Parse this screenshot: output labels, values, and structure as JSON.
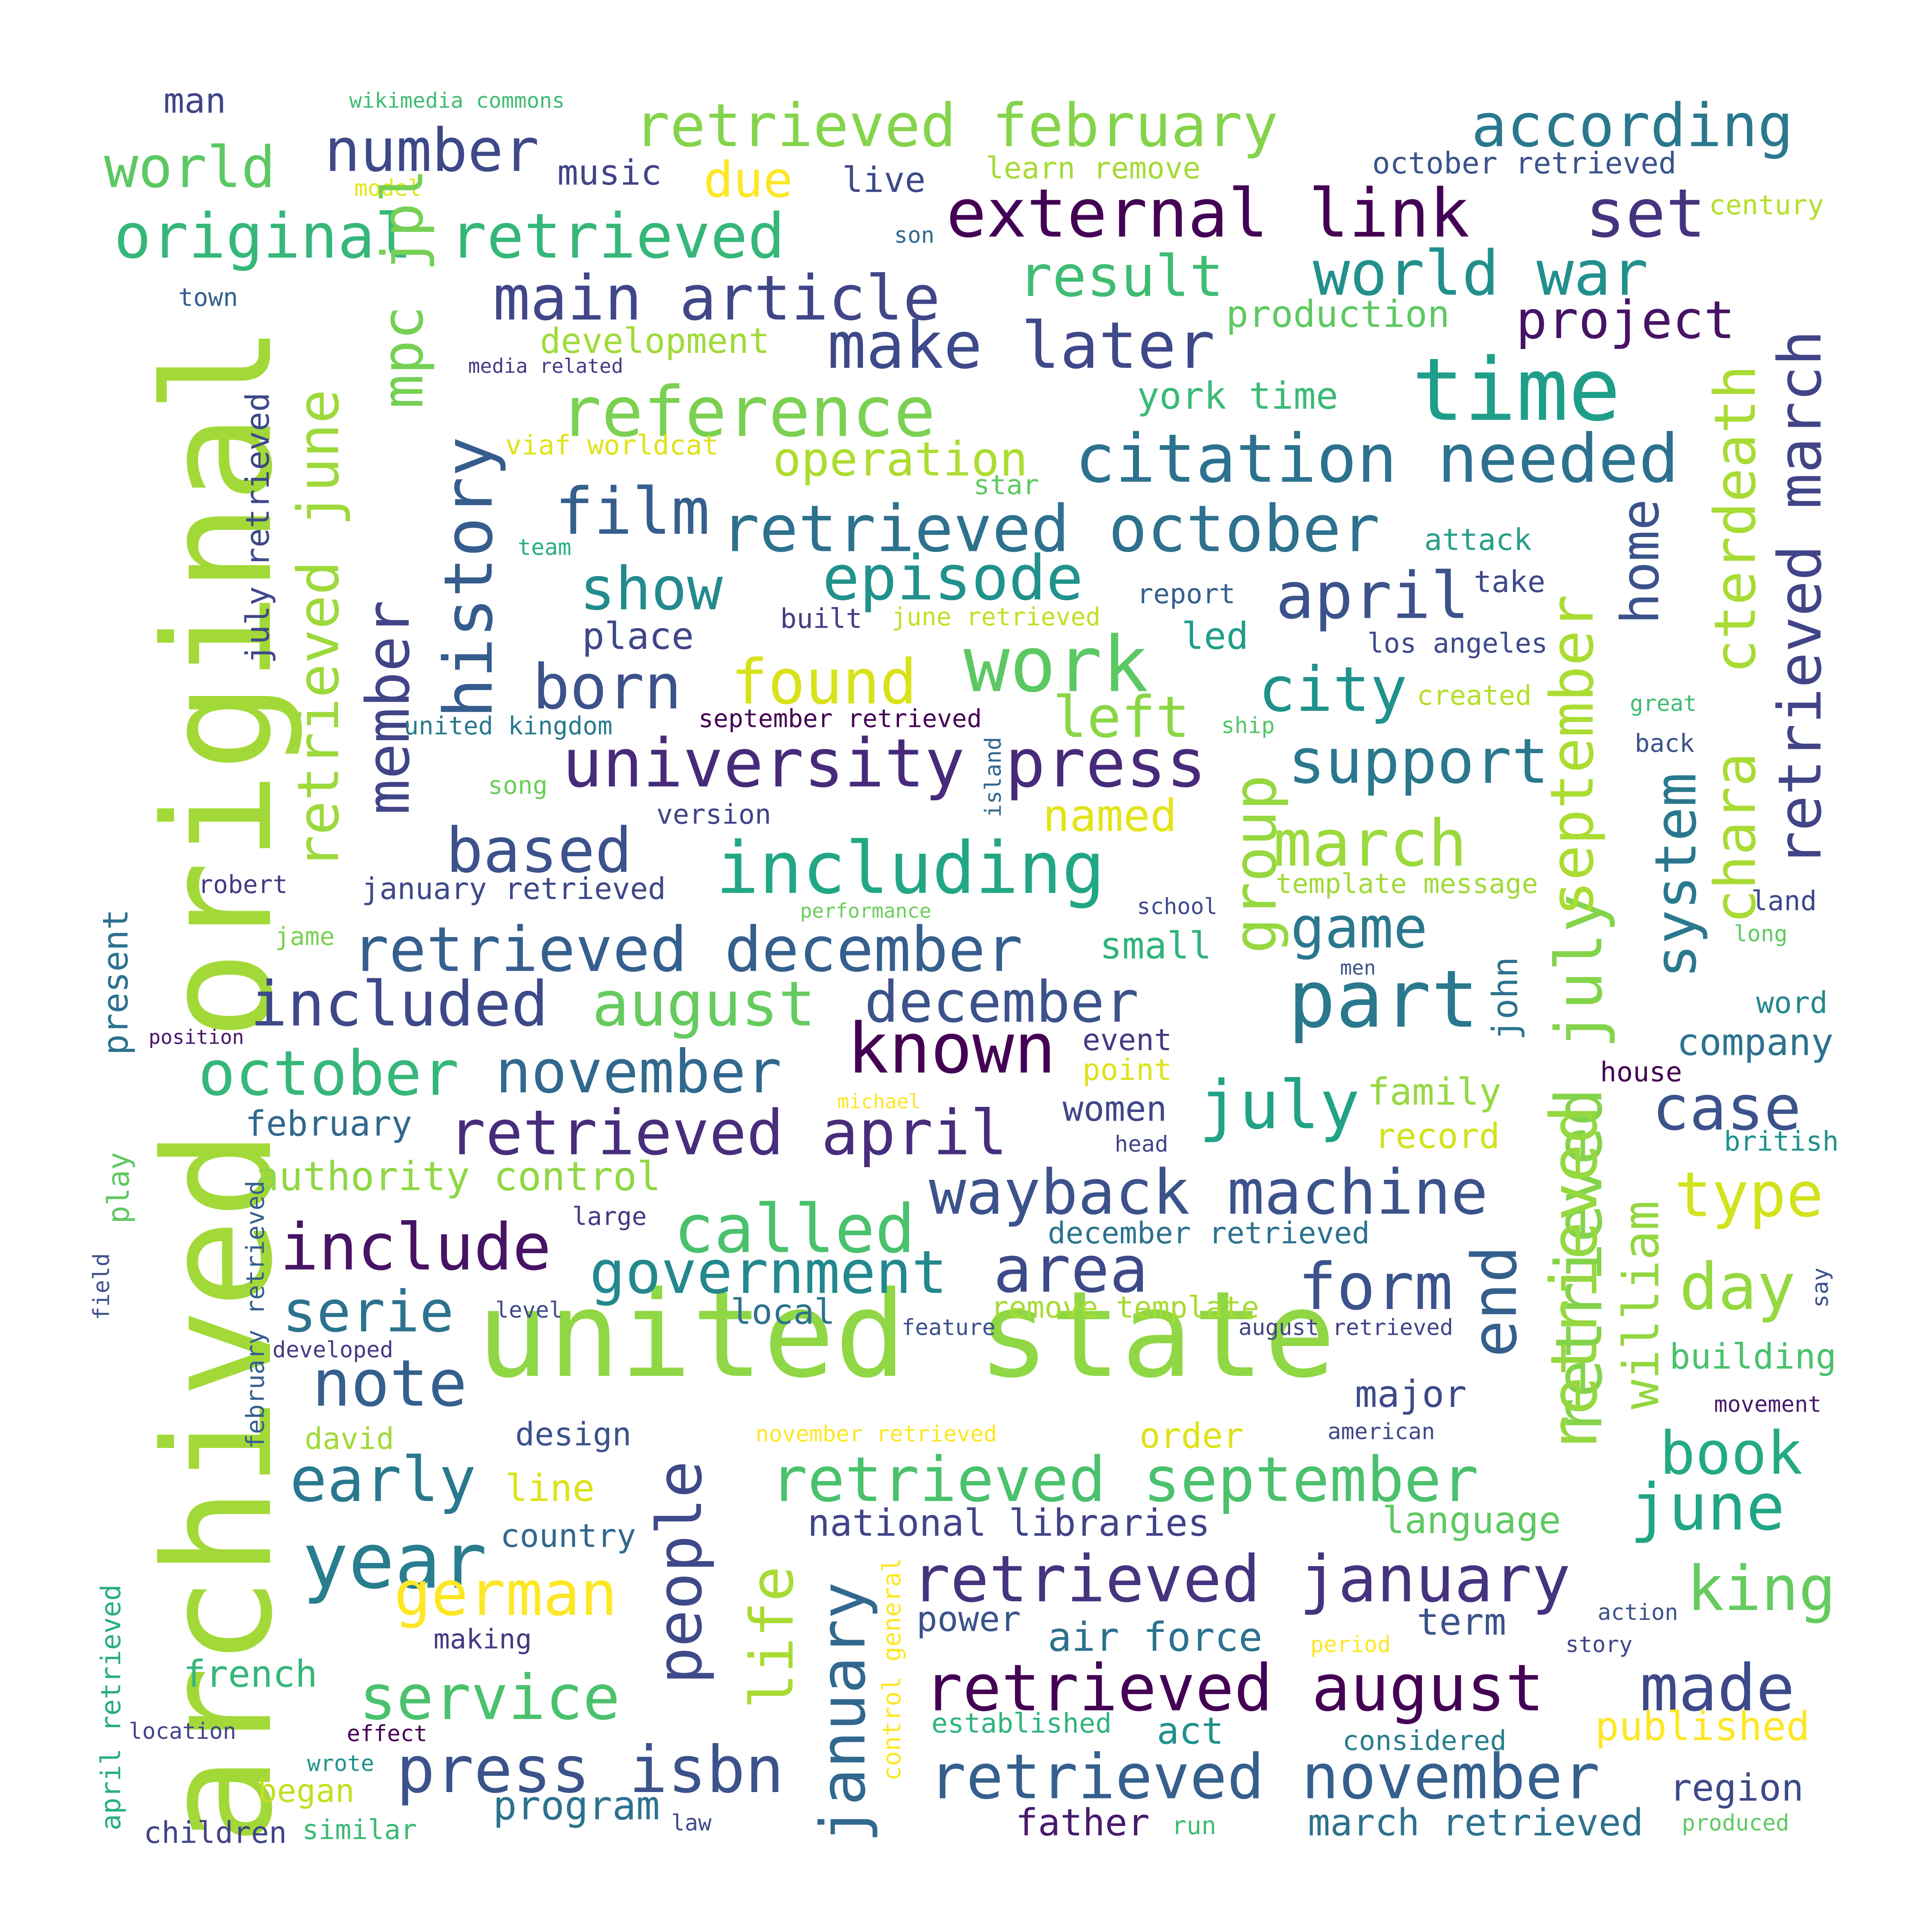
{
  "palette": {
    "dark_purple": "#440154",
    "indigo": "#3b2883",
    "blue_violet": "#414487",
    "slate_blue": "#355f8d",
    "steel_blue": "#2c728e",
    "teal": "#21908d",
    "sea_green": "#27ad81",
    "green": "#5cc863",
    "lime": "#aadc32",
    "yellow": "#fde725"
  },
  "words": [
    {
      "text": "archived original",
      "color": "#a2d938"
    },
    {
      "text": "united state",
      "color": "#8fd744"
    },
    {
      "text": "retrieved february",
      "color": "#84d44b"
    },
    {
      "text": "according",
      "color": "#2a788e"
    },
    {
      "text": "number",
      "color": "#3e4989"
    },
    {
      "text": "world",
      "color": "#5cc863"
    },
    {
      "text": "man",
      "color": "#414487"
    },
    {
      "text": "wikimedia commons",
      "color": "#3fbc73"
    },
    {
      "text": "music",
      "color": "#414487"
    },
    {
      "text": "due",
      "color": "#fde725"
    },
    {
      "text": "live",
      "color": "#3e4989"
    },
    {
      "text": "learn remove",
      "color": "#a5db36"
    },
    {
      "text": "october retrieved",
      "color": "#3b528b"
    },
    {
      "text": "model",
      "color": "#e5e419"
    },
    {
      "text": "century",
      "color": "#b5de2b"
    },
    {
      "text": "original retrieved",
      "color": "#35b779"
    },
    {
      "text": "external link",
      "color": "#440154"
    },
    {
      "text": "set",
      "color": "#46337e"
    },
    {
      "text": "son",
      "color": "#31688e"
    },
    {
      "text": "main article",
      "color": "#404688"
    },
    {
      "text": "result",
      "color": "#3fbc73"
    },
    {
      "text": "world war",
      "color": "#21908d"
    },
    {
      "text": "town",
      "color": "#355f8d"
    },
    {
      "text": "mpc jpl",
      "color": "#75d054"
    },
    {
      "text": "development",
      "color": "#a0da39"
    },
    {
      "text": "production",
      "color": "#5ec962"
    },
    {
      "text": "project",
      "color": "#471365"
    },
    {
      "text": "retrieved march",
      "color": "#414487"
    },
    {
      "text": "make later",
      "color": "#3e4989"
    },
    {
      "text": "time",
      "color": "#1f9e89"
    },
    {
      "text": "media related",
      "color": "#443a83"
    },
    {
      "text": "reference",
      "color": "#7ad151"
    },
    {
      "text": "york time",
      "color": "#3aba76"
    },
    {
      "text": "viaf worldcat",
      "color": "#dfe318"
    },
    {
      "text": "operation",
      "color": "#addc30"
    },
    {
      "text": "citation needed",
      "color": "#2c728e"
    },
    {
      "text": "chara",
      "color": "#a8db34"
    },
    {
      "text": "cterdeath",
      "color": "#a8db34"
    },
    {
      "text": "star",
      "color": "#5ec962"
    },
    {
      "text": "history",
      "color": "#365c8d"
    },
    {
      "text": "film",
      "color": "#355f8d"
    },
    {
      "text": "retrieved october",
      "color": "#2d718e"
    },
    {
      "text": "team",
      "color": "#29af7f"
    },
    {
      "text": "attack",
      "color": "#2a9f89"
    },
    {
      "text": "home",
      "color": "#3b528b"
    },
    {
      "text": "retrieved june",
      "color": "#9dd93b"
    },
    {
      "text": "july retrieved",
      "color": "#3e4989"
    },
    {
      "text": "show",
      "color": "#238a8d"
    },
    {
      "text": "episode",
      "color": "#21918c"
    },
    {
      "text": "take",
      "color": "#3e4989"
    },
    {
      "text": "report",
      "color": "#355f8d"
    },
    {
      "text": "april",
      "color": "#3b528b"
    },
    {
      "text": "member",
      "color": "#414487"
    },
    {
      "text": "place",
      "color": "#404688"
    },
    {
      "text": "built",
      "color": "#433e85"
    },
    {
      "text": "june retrieved",
      "color": "#c2df23"
    },
    {
      "text": "led",
      "color": "#1f9e89"
    },
    {
      "text": "los angeles",
      "color": "#3e4989"
    },
    {
      "text": "work",
      "color": "#5cc863"
    },
    {
      "text": "born",
      "color": "#3b528b"
    },
    {
      "text": "found",
      "color": "#d8e219"
    },
    {
      "text": "city",
      "color": "#20928c"
    },
    {
      "text": "left",
      "color": "#8bd646"
    },
    {
      "text": "created",
      "color": "#b5de2b"
    },
    {
      "text": "great",
      "color": "#3fbc73"
    },
    {
      "text": "united kingdom",
      "color": "#2a788e"
    },
    {
      "text": "september retrieved",
      "color": "#440154"
    },
    {
      "text": "ship",
      "color": "#52c569"
    },
    {
      "text": "back",
      "color": "#3b528b"
    },
    {
      "text": "university press",
      "color": "#472a7a"
    },
    {
      "text": "support",
      "color": "#2a788e"
    },
    {
      "text": "group",
      "color": "#95d840"
    },
    {
      "text": "retrieved july",
      "color": "#84d44b"
    },
    {
      "text": "september",
      "color": "#aadc32"
    },
    {
      "text": "system",
      "color": "#2a788e"
    },
    {
      "text": "island",
      "color": "#31688e"
    },
    {
      "text": "song",
      "color": "#6ccd5a"
    },
    {
      "text": "version",
      "color": "#414487"
    },
    {
      "text": "named",
      "color": "#e2e418"
    },
    {
      "text": "based",
      "color": "#3b528b"
    },
    {
      "text": "including",
      "color": "#22a785"
    },
    {
      "text": "march",
      "color": "#9bd93c"
    },
    {
      "text": "game",
      "color": "#2a788e"
    },
    {
      "text": "robert",
      "color": "#443a83"
    },
    {
      "text": "january retrieved",
      "color": "#3e4989"
    },
    {
      "text": "template message",
      "color": "#a0da39"
    },
    {
      "text": "land",
      "color": "#3e4989"
    },
    {
      "text": "performance",
      "color": "#6ccd5a"
    },
    {
      "text": "school",
      "color": "#3e4989"
    },
    {
      "text": "long",
      "color": "#5ec962"
    },
    {
      "text": "present",
      "color": "#2c728e"
    },
    {
      "text": "jame",
      "color": "#7ad151"
    },
    {
      "text": "retrieved december",
      "color": "#355f8d"
    },
    {
      "text": "small",
      "color": "#2fb47c"
    },
    {
      "text": "men",
      "color": "#3b528b"
    },
    {
      "text": "included",
      "color": "#3e4989"
    },
    {
      "text": "august",
      "color": "#65cb5e"
    },
    {
      "text": "december",
      "color": "#3b528b"
    },
    {
      "text": "part",
      "color": "#2a788e"
    },
    {
      "text": "john",
      "color": "#2c728e"
    },
    {
      "text": "word",
      "color": "#23888e"
    },
    {
      "text": "position",
      "color": "#481769"
    },
    {
      "text": "known",
      "color": "#440154"
    },
    {
      "text": "event",
      "color": "#443a83"
    },
    {
      "text": "company",
      "color": "#2c728e"
    },
    {
      "text": "october",
      "color": "#35b779"
    },
    {
      "text": "november",
      "color": "#31688e"
    },
    {
      "text": "point",
      "color": "#dde318"
    },
    {
      "text": "house",
      "color": "#440154"
    },
    {
      "text": "michael",
      "color": "#fde725"
    },
    {
      "text": "women",
      "color": "#404688"
    },
    {
      "text": "july",
      "color": "#20a386"
    },
    {
      "text": "family",
      "color": "#95d840"
    },
    {
      "text": "case",
      "color": "#3b528b"
    },
    {
      "text": "february",
      "color": "#31688e"
    },
    {
      "text": "retrieved april",
      "color": "#472d7b"
    },
    {
      "text": "head",
      "color": "#414487"
    },
    {
      "text": "record",
      "color": "#d2e21b"
    },
    {
      "text": "british",
      "color": "#21918c"
    },
    {
      "text": "authority control",
      "color": "#8fd744"
    },
    {
      "text": "wayback machine",
      "color": "#3b528b"
    },
    {
      "text": "retrieved",
      "color": "#95d840"
    },
    {
      "text": "william",
      "color": "#93d741"
    },
    {
      "text": "type",
      "color": "#d2e21b"
    },
    {
      "text": "play",
      "color": "#5ec962"
    },
    {
      "text": "large",
      "color": "#443a83"
    },
    {
      "text": "called",
      "color": "#4ac16d"
    },
    {
      "text": "include",
      "color": "#471365"
    },
    {
      "text": "december retrieved",
      "color": "#2c728e"
    },
    {
      "text": "say",
      "color": "#3b528b"
    },
    {
      "text": "government",
      "color": "#23888e"
    },
    {
      "text": "area",
      "color": "#3e4989"
    },
    {
      "text": "form",
      "color": "#3b528b"
    },
    {
      "text": "end",
      "color": "#355f8d"
    },
    {
      "text": "day",
      "color": "#95d840"
    },
    {
      "text": "field",
      "color": "#3b528b"
    },
    {
      "text": "serie",
      "color": "#2c728e"
    },
    {
      "text": "level",
      "color": "#3e4989"
    },
    {
      "text": "local",
      "color": "#2c728e"
    },
    {
      "text": "remove template",
      "color": "#a8db34"
    },
    {
      "text": "feature",
      "color": "#3b528b"
    },
    {
      "text": "august retrieved",
      "color": "#414487"
    },
    {
      "text": "developed",
      "color": "#443a83"
    },
    {
      "text": "building",
      "color": "#4ac16d"
    },
    {
      "text": "note",
      "color": "#355f8d"
    },
    {
      "text": "major",
      "color": "#3e4989"
    },
    {
      "text": "movement",
      "color": "#481a6c"
    },
    {
      "text": "david",
      "color": "#a0da39"
    },
    {
      "text": "design",
      "color": "#3b528b"
    },
    {
      "text": "november retrieved",
      "color": "#fde725"
    },
    {
      "text": "order",
      "color": "#dde318"
    },
    {
      "text": "american",
      "color": "#3e4989"
    },
    {
      "text": "february retrieved",
      "color": "#355f8d"
    },
    {
      "text": "early",
      "color": "#2a788e"
    },
    {
      "text": "people",
      "color": "#3e4989"
    },
    {
      "text": "retrieved september",
      "color": "#4ac16d"
    },
    {
      "text": "book",
      "color": "#23a983"
    },
    {
      "text": "line",
      "color": "#dde318"
    },
    {
      "text": "year",
      "color": "#287d8e"
    },
    {
      "text": "national libraries",
      "color": "#414487"
    },
    {
      "text": "language",
      "color": "#5ec962"
    },
    {
      "text": "june",
      "color": "#21a585"
    },
    {
      "text": "country",
      "color": "#31688e"
    },
    {
      "text": "german",
      "color": "#fde725"
    },
    {
      "text": "life",
      "color": "#a8db34"
    },
    {
      "text": "january",
      "color": "#31688e"
    },
    {
      "text": "retrieved january",
      "color": "#46337e"
    },
    {
      "text": "king",
      "color": "#65cb5e"
    },
    {
      "text": "control general",
      "color": "#fde725"
    },
    {
      "text": "power",
      "color": "#3b528b"
    },
    {
      "text": "air force",
      "color": "#2c728e"
    },
    {
      "text": "term",
      "color": "#3b528b"
    },
    {
      "text": "action",
      "color": "#3b528b"
    },
    {
      "text": "making",
      "color": "#443a83"
    },
    {
      "text": "period",
      "color": "#fde725"
    },
    {
      "text": "story",
      "color": "#414487"
    },
    {
      "text": "april retrieved",
      "color": "#29af7f"
    },
    {
      "text": "french",
      "color": "#35b779"
    },
    {
      "text": "service",
      "color": "#4ac16d"
    },
    {
      "text": "retrieved august",
      "color": "#440154"
    },
    {
      "text": "made",
      "color": "#3e4989"
    },
    {
      "text": "location",
      "color": "#414487"
    },
    {
      "text": "effect",
      "color": "#440154"
    },
    {
      "text": "established",
      "color": "#2fb47c"
    },
    {
      "text": "published",
      "color": "#fde725"
    },
    {
      "text": "wrote",
      "color": "#21918c"
    },
    {
      "text": "press isbn",
      "color": "#3b528b"
    },
    {
      "text": "act",
      "color": "#21918c"
    },
    {
      "text": "considered",
      "color": "#287d8e"
    },
    {
      "text": "began",
      "color": "#c2df23"
    },
    {
      "text": "retrieved november",
      "color": "#355f8d"
    },
    {
      "text": "region",
      "color": "#3e4989"
    },
    {
      "text": "program",
      "color": "#2c728e"
    },
    {
      "text": "children",
      "color": "#414487"
    },
    {
      "text": "similar",
      "color": "#3aba76"
    },
    {
      "text": "law",
      "color": "#3e4989"
    },
    {
      "text": "father",
      "color": "#481a6c"
    },
    {
      "text": "run",
      "color": "#3fbc73"
    },
    {
      "text": "march retrieved",
      "color": "#2c728e"
    },
    {
      "text": "produced",
      "color": "#5ec962"
    }
  ]
}
